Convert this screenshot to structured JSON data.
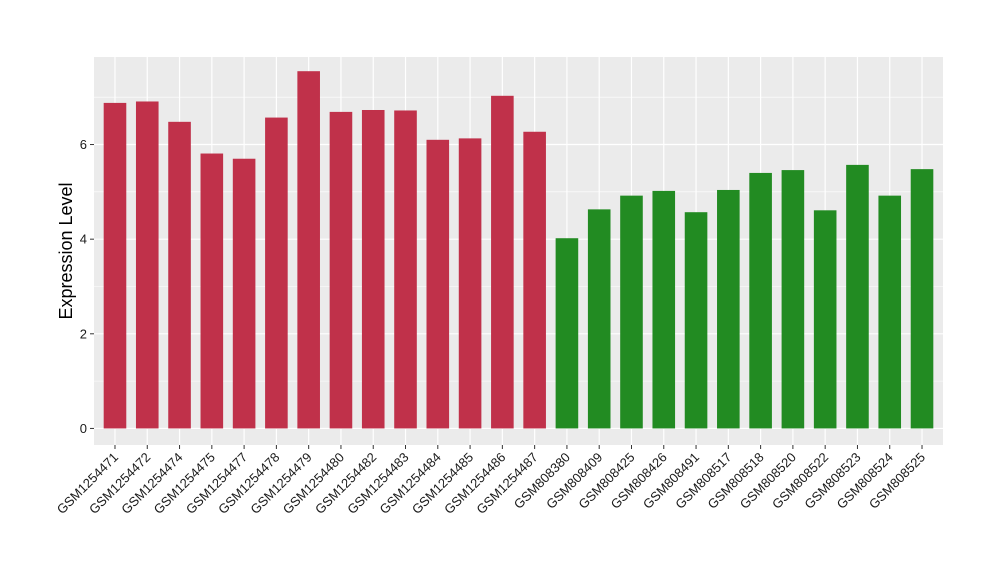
{
  "chart_data": {
    "type": "bar",
    "ylabel": "Expression Level",
    "xlabel": "",
    "ylim": [
      -0.35,
      7.85
    ],
    "yticks": [
      0,
      2,
      4,
      6
    ],
    "grid": true,
    "background": "#ebebeb",
    "gridline_color": "#ffffff",
    "categories": [
      "GSM1254471",
      "GSM1254472",
      "GSM1254474",
      "GSM1254475",
      "GSM1254477",
      "GSM1254478",
      "GSM1254479",
      "GSM1254480",
      "GSM1254482",
      "GSM1254483",
      "GSM1254484",
      "GSM1254485",
      "GSM1254486",
      "GSM1254487",
      "GSM808380",
      "GSM808409",
      "GSM808425",
      "GSM808426",
      "GSM808491",
      "GSM808517",
      "GSM808518",
      "GSM808520",
      "GSM808522",
      "GSM808523",
      "GSM808524",
      "GSM808525"
    ],
    "values": [
      6.88,
      6.91,
      6.48,
      5.81,
      5.7,
      6.57,
      7.55,
      6.69,
      6.73,
      6.72,
      6.1,
      6.13,
      7.03,
      6.27,
      4.02,
      4.63,
      4.92,
      5.02,
      4.57,
      5.04,
      5.4,
      5.46,
      4.61,
      5.57,
      4.92,
      5.48
    ],
    "bar_colors": [
      "#c0314a",
      "#c0314a",
      "#c0314a",
      "#c0314a",
      "#c0314a",
      "#c0314a",
      "#c0314a",
      "#c0314a",
      "#c0314a",
      "#c0314a",
      "#c0314a",
      "#c0314a",
      "#c0314a",
      "#c0314a",
      "#228b22",
      "#228b22",
      "#228b22",
      "#228b22",
      "#228b22",
      "#228b22",
      "#228b22",
      "#228b22",
      "#228b22",
      "#228b22",
      "#228b22",
      "#228b22"
    ]
  }
}
